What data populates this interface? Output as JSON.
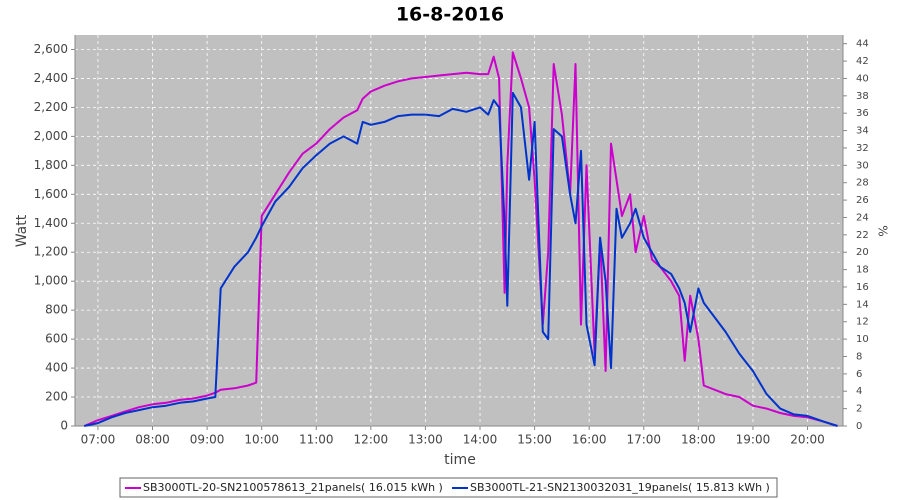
{
  "chart_data": {
    "type": "line",
    "title": "16-8-2016",
    "x_label": "time",
    "y_label": "Watt",
    "y2_label": "%",
    "x": [
      6.75,
      7.0,
      7.25,
      7.5,
      7.75,
      8.0,
      8.25,
      8.5,
      8.75,
      9.0,
      9.15,
      9.25,
      9.5,
      9.75,
      9.9,
      10.0,
      10.25,
      10.5,
      10.75,
      11.0,
      11.25,
      11.5,
      11.75,
      11.85,
      12.0,
      12.25,
      12.5,
      12.75,
      13.0,
      13.25,
      13.5,
      13.75,
      14.0,
      14.15,
      14.25,
      14.35,
      14.45,
      14.5,
      14.6,
      14.75,
      14.9,
      15.0,
      15.15,
      15.25,
      15.35,
      15.5,
      15.65,
      15.75,
      15.85,
      15.95,
      16.1,
      16.2,
      16.3,
      16.4,
      16.5,
      16.6,
      16.75,
      16.85,
      17.0,
      17.15,
      17.3,
      17.5,
      17.65,
      17.75,
      17.85,
      18.0,
      18.1,
      18.5,
      18.75,
      19.0,
      19.25,
      19.5,
      19.75,
      20.0,
      20.3,
      20.55
    ],
    "series": [
      {
        "name": "SB3000TL-20-SN2100578613_21panels( 16.015 kWh )",
        "color": "#cc00cc",
        "values": [
          0,
          40,
          70,
          100,
          130,
          150,
          160,
          180,
          190,
          210,
          230,
          250,
          260,
          280,
          300,
          1450,
          1600,
          1750,
          1880,
          1950,
          2050,
          2130,
          2180,
          2260,
          2310,
          2350,
          2380,
          2400,
          2410,
          2420,
          2430,
          2440,
          2430,
          2430,
          2550,
          2400,
          920,
          1800,
          2580,
          2400,
          2200,
          1700,
          700,
          1200,
          2500,
          2150,
          1600,
          2500,
          700,
          1800,
          500,
          1300,
          380,
          1950,
          1700,
          1450,
          1600,
          1200,
          1450,
          1150,
          1100,
          1000,
          900,
          450,
          900,
          600,
          280,
          220,
          200,
          140,
          120,
          90,
          70,
          60,
          30,
          0
        ]
      },
      {
        "name": "SB3000TL-21-SN2130032031_19panels( 15.813 kWh )",
        "color": "#0033cc",
        "values": [
          0,
          20,
          60,
          90,
          110,
          130,
          140,
          160,
          170,
          190,
          200,
          950,
          1100,
          1200,
          1300,
          1380,
          1550,
          1650,
          1780,
          1870,
          1950,
          2000,
          1950,
          2100,
          2080,
          2100,
          2140,
          2150,
          2150,
          2140,
          2190,
          2170,
          2200,
          2150,
          2250,
          2200,
          1400,
          830,
          2300,
          2200,
          1700,
          2100,
          650,
          600,
          2050,
          2000,
          1600,
          1400,
          1900,
          700,
          420,
          1300,
          1000,
          400,
          1500,
          1300,
          1400,
          1500,
          1300,
          1200,
          1100,
          1050,
          950,
          850,
          650,
          950,
          850,
          650,
          500,
          380,
          220,
          120,
          80,
          70,
          30,
          0
        ]
      }
    ],
    "xlim": [
      6.58,
      20.65
    ],
    "xticks": [
      {
        "value": 7,
        "label": "07:00"
      },
      {
        "value": 8,
        "label": "08:00"
      },
      {
        "value": 9,
        "label": "09:00"
      },
      {
        "value": 10,
        "label": "10:00"
      },
      {
        "value": 11,
        "label": "11:00"
      },
      {
        "value": 12,
        "label": "12:00"
      },
      {
        "value": 13,
        "label": "13:00"
      },
      {
        "value": 14,
        "label": "14:00"
      },
      {
        "value": 15,
        "label": "15:00"
      },
      {
        "value": 16,
        "label": "16:00"
      },
      {
        "value": 17,
        "label": "17:00"
      },
      {
        "value": 18,
        "label": "18:00"
      },
      {
        "value": 19,
        "label": "19:00"
      },
      {
        "value": 20,
        "label": "20:00"
      }
    ],
    "ylim": [
      0,
      2700
    ],
    "yticks": [
      0,
      200,
      400,
      600,
      800,
      {
        "value": 1000,
        "label": "1,000"
      },
      {
        "value": 1200,
        "label": "1,200"
      },
      {
        "value": 1400,
        "label": "1,400"
      },
      {
        "value": 1600,
        "label": "1,600"
      },
      {
        "value": 1800,
        "label": "1,800"
      },
      {
        "value": 2000,
        "label": "2,000"
      },
      {
        "value": 2200,
        "label": "2,200"
      },
      {
        "value": 2400,
        "label": "2,400"
      },
      {
        "value": 2600,
        "label": "2,600"
      }
    ],
    "y2lim": [
      0,
      45
    ],
    "y2ticks": [
      0,
      2,
      4,
      6,
      8,
      10,
      12,
      14,
      16,
      18,
      20,
      22,
      24,
      26,
      28,
      30,
      32,
      34,
      36,
      38,
      40,
      42,
      44
    ],
    "grid": true,
    "legend": "bottom"
  }
}
